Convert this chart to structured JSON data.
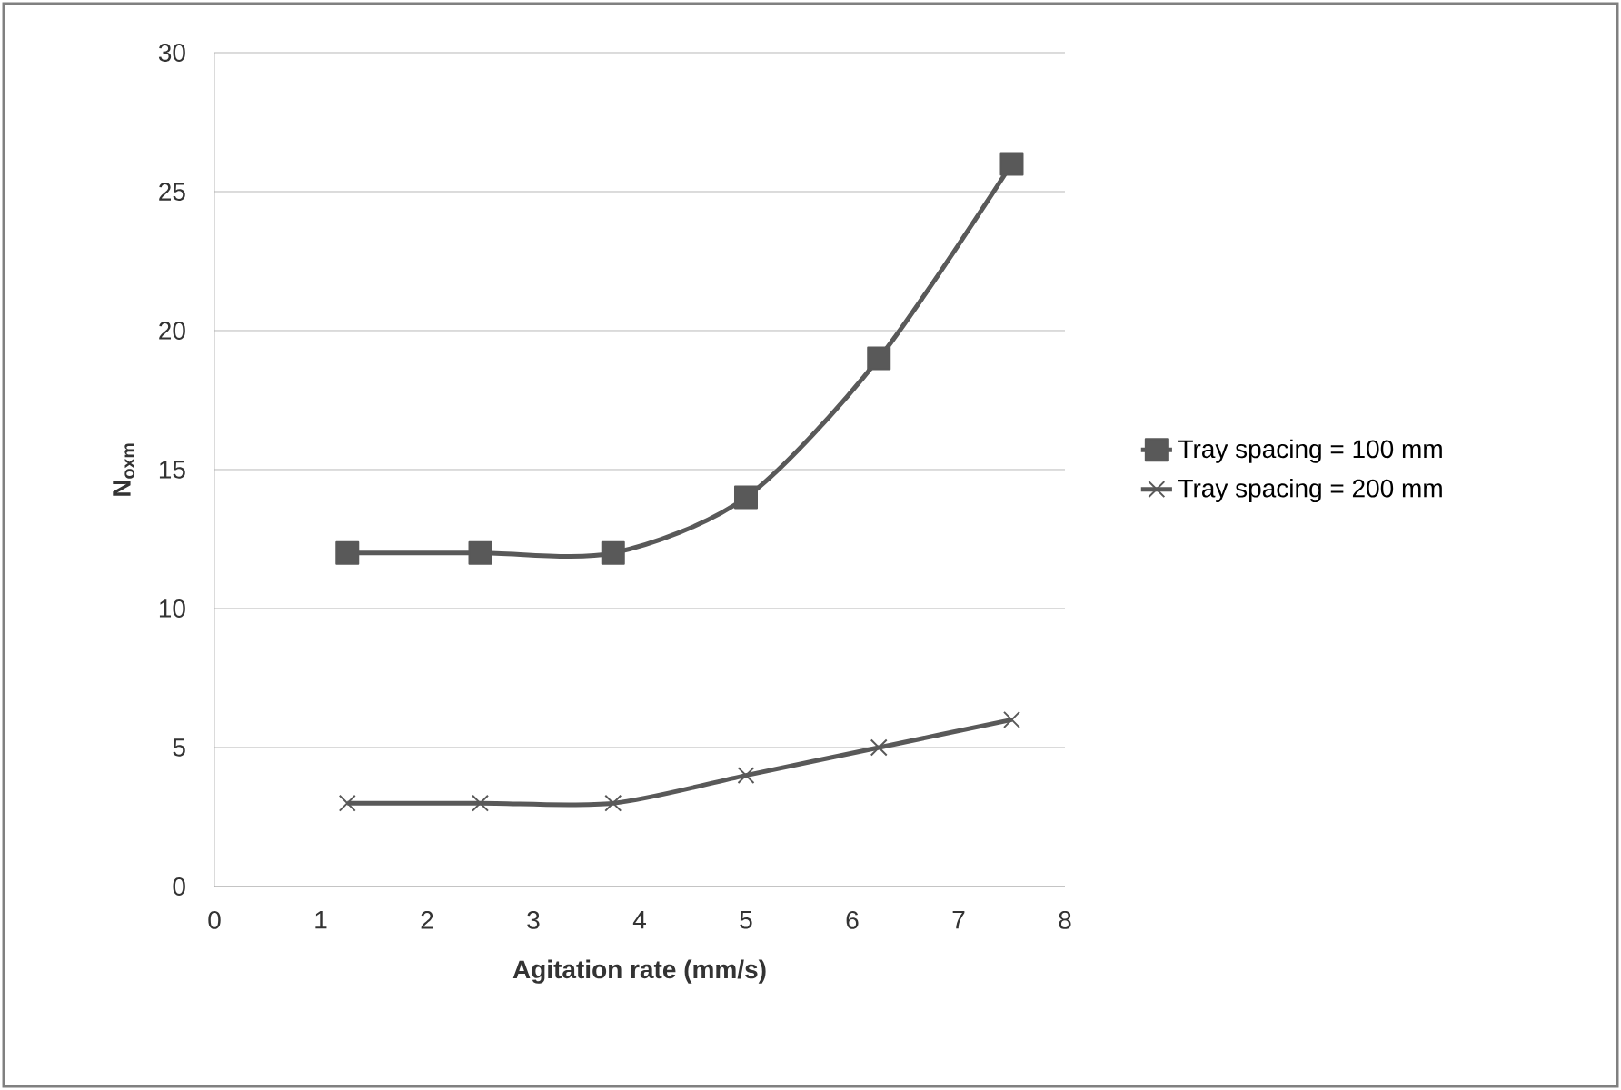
{
  "chart_data": {
    "type": "line",
    "xlabel": "Agitation rate (mm/s)",
    "ylabel": "N$_{oxm}$",
    "x": [
      1.25,
      2.5,
      3.75,
      5,
      6.25,
      7.5
    ],
    "series": [
      {
        "name": "Tray spacing = 100 mm",
        "color": "#595959",
        "marker": "square",
        "values": [
          12,
          12,
          12,
          14,
          19,
          26
        ]
      },
      {
        "name": "Tray spacing = 200 mm",
        "color": "#595959",
        "marker": "cross",
        "values": [
          3,
          3,
          3,
          4,
          5,
          6
        ]
      }
    ],
    "xlim": [
      0,
      8
    ],
    "xticks": [
      0,
      1,
      2,
      3,
      4,
      5,
      6,
      7,
      8
    ],
    "ylim": [
      0,
      30
    ],
    "yticks": [
      0,
      5,
      10,
      15,
      20,
      25,
      30
    ],
    "grid": "y",
    "legend": "right"
  }
}
